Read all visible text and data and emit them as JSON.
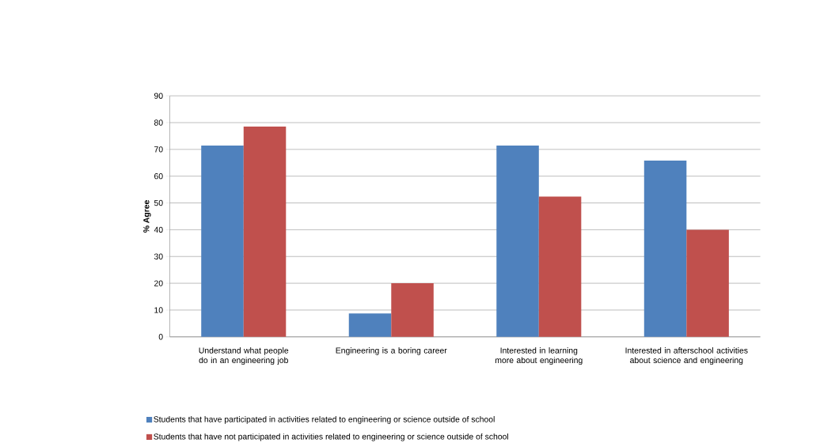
{
  "chart_data": {
    "type": "bar",
    "ylabel": "% Agree",
    "categories": [
      "Understand what people do in an engineering job",
      "Engineering is a boring career",
      "Interested in learning more about engineering",
      "Interested in afterschool activities about science and engineering"
    ],
    "series": [
      {
        "name": "Students that have participated in activities related to engineering or science outside of school",
        "color": "#4f81bd",
        "values": [
          71.4,
          8.7,
          71.4,
          65.8
        ]
      },
      {
        "name": "Students that have not participated in activities related to engineering or science outside of school",
        "color": "#c0504d",
        "values": [
          78.5,
          20,
          52.4,
          40
        ]
      }
    ],
    "ylim": [
      0,
      90
    ],
    "yticks": [
      0,
      10,
      20,
      30,
      40,
      50,
      60,
      70,
      80,
      90
    ],
    "grid": "y",
    "legend": "bottom"
  }
}
